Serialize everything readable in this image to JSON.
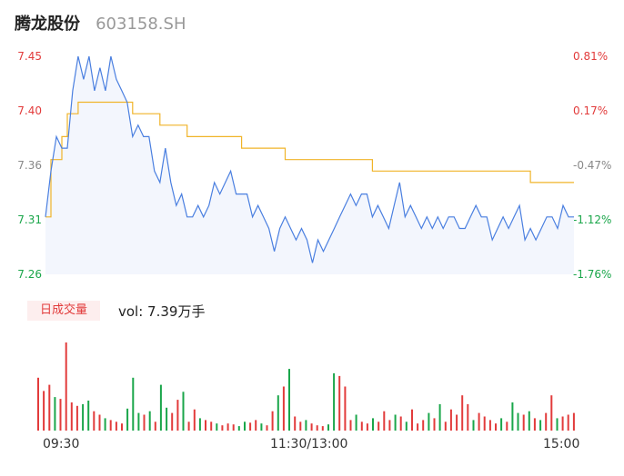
{
  "header": {
    "name": "腾龙股份",
    "code": "603158.SH"
  },
  "price_axis": [
    {
      "label": "7.45",
      "color": "#e23b3b"
    },
    {
      "label": "7.40",
      "color": "#e23b3b"
    },
    {
      "label": "7.36",
      "color": "#888888"
    },
    {
      "label": "7.31",
      "color": "#1aa64a"
    },
    {
      "label": "7.26",
      "color": "#1aa64a"
    }
  ],
  "pct_axis": [
    {
      "label": "0.81%",
      "color": "#e23b3b"
    },
    {
      "label": "0.17%",
      "color": "#e23b3b"
    },
    {
      "label": "-0.47%",
      "color": "#888888"
    },
    {
      "label": "-1.12%",
      "color": "#1aa64a"
    },
    {
      "label": "-1.76%",
      "color": "#1aa64a"
    }
  ],
  "volume": {
    "badge": "日成交量",
    "text": "vol: 7.39万手"
  },
  "time_axis": [
    "09:30",
    "11:30/13:00",
    "15:00"
  ],
  "colors": {
    "price_line": "#4a7fe0",
    "avg_line": "#f0b429",
    "up": "#e23b3b",
    "down": "#1aa64a"
  },
  "chart_data": {
    "type": "line",
    "ylim": [
      7.26,
      7.45
    ],
    "price": [
      7.31,
      7.35,
      7.38,
      7.37,
      7.37,
      7.42,
      7.45,
      7.43,
      7.45,
      7.42,
      7.44,
      7.42,
      7.45,
      7.43,
      7.42,
      7.41,
      7.38,
      7.39,
      7.38,
      7.38,
      7.35,
      7.34,
      7.37,
      7.34,
      7.32,
      7.33,
      7.31,
      7.31,
      7.32,
      7.31,
      7.32,
      7.34,
      7.33,
      7.34,
      7.35,
      7.33,
      7.33,
      7.33,
      7.31,
      7.32,
      7.31,
      7.3,
      7.28,
      7.3,
      7.31,
      7.3,
      7.29,
      7.3,
      7.29,
      7.27,
      7.29,
      7.28,
      7.29,
      7.3,
      7.31,
      7.32,
      7.33,
      7.32,
      7.33,
      7.33,
      7.31,
      7.32,
      7.31,
      7.3,
      7.32,
      7.34,
      7.31,
      7.32,
      7.31,
      7.3,
      7.31,
      7.3,
      7.31,
      7.3,
      7.31,
      7.31,
      7.3,
      7.3,
      7.31,
      7.32,
      7.31,
      7.31,
      7.29,
      7.3,
      7.31,
      7.3,
      7.31,
      7.32,
      7.29,
      7.3,
      7.29,
      7.3,
      7.31,
      7.31,
      7.3,
      7.32,
      7.31,
      7.31
    ],
    "avg": [
      7.31,
      7.36,
      7.36,
      7.38,
      7.4,
      7.4,
      7.41,
      7.41,
      7.41,
      7.41,
      7.41,
      7.41,
      7.41,
      7.41,
      7.41,
      7.41,
      7.4,
      7.4,
      7.4,
      7.4,
      7.4,
      7.39,
      7.39,
      7.39,
      7.39,
      7.39,
      7.38,
      7.38,
      7.38,
      7.38,
      7.38,
      7.38,
      7.38,
      7.38,
      7.38,
      7.38,
      7.37,
      7.37,
      7.37,
      7.37,
      7.37,
      7.37,
      7.37,
      7.37,
      7.36,
      7.36,
      7.36,
      7.36,
      7.36,
      7.36,
      7.36,
      7.36,
      7.36,
      7.36,
      7.36,
      7.36,
      7.36,
      7.36,
      7.36,
      7.36,
      7.35,
      7.35,
      7.35,
      7.35,
      7.35,
      7.35,
      7.35,
      7.35,
      7.35,
      7.35,
      7.35,
      7.35,
      7.35,
      7.35,
      7.35,
      7.35,
      7.35,
      7.35,
      7.35,
      7.35,
      7.35,
      7.35,
      7.35,
      7.35,
      7.35,
      7.35,
      7.35,
      7.35,
      7.35,
      7.34,
      7.34,
      7.34,
      7.34,
      7.34,
      7.34,
      7.34,
      7.34,
      7.34
    ],
    "volume_bars": [
      {
        "v": 60,
        "up": true
      },
      {
        "v": 45,
        "up": true
      },
      {
        "v": 52,
        "up": true
      },
      {
        "v": 38,
        "up": false
      },
      {
        "v": 36,
        "up": true
      },
      {
        "v": 100,
        "up": true
      },
      {
        "v": 32,
        "up": true
      },
      {
        "v": 28,
        "up": true
      },
      {
        "v": 30,
        "up": false
      },
      {
        "v": 34,
        "up": false
      },
      {
        "v": 22,
        "up": true
      },
      {
        "v": 18,
        "up": true
      },
      {
        "v": 14,
        "up": false
      },
      {
        "v": 12,
        "up": true
      },
      {
        "v": 10,
        "up": true
      },
      {
        "v": 8,
        "up": true
      },
      {
        "v": 25,
        "up": false
      },
      {
        "v": 60,
        "up": false
      },
      {
        "v": 20,
        "up": false
      },
      {
        "v": 18,
        "up": true
      },
      {
        "v": 22,
        "up": false
      },
      {
        "v": 10,
        "up": true
      },
      {
        "v": 52,
        "up": false
      },
      {
        "v": 26,
        "up": false
      },
      {
        "v": 20,
        "up": true
      },
      {
        "v": 35,
        "up": true
      },
      {
        "v": 44,
        "up": false
      },
      {
        "v": 10,
        "up": true
      },
      {
        "v": 24,
        "up": true
      },
      {
        "v": 14,
        "up": false
      },
      {
        "v": 12,
        "up": true
      },
      {
        "v": 10,
        "up": true
      },
      {
        "v": 8,
        "up": false
      },
      {
        "v": 6,
        "up": true
      },
      {
        "v": 8,
        "up": true
      },
      {
        "v": 7,
        "up": true
      },
      {
        "v": 5,
        "up": false
      },
      {
        "v": 10,
        "up": false
      },
      {
        "v": 9,
        "up": true
      },
      {
        "v": 12,
        "up": true
      },
      {
        "v": 8,
        "up": false
      },
      {
        "v": 6,
        "up": true
      },
      {
        "v": 22,
        "up": true
      },
      {
        "v": 40,
        "up": false
      },
      {
        "v": 50,
        "up": true
      },
      {
        "v": 70,
        "up": false
      },
      {
        "v": 16,
        "up": true
      },
      {
        "v": 10,
        "up": true
      },
      {
        "v": 12,
        "up": false
      },
      {
        "v": 8,
        "up": true
      },
      {
        "v": 6,
        "up": true
      },
      {
        "v": 5,
        "up": true
      },
      {
        "v": 7,
        "up": false
      },
      {
        "v": 65,
        "up": false
      },
      {
        "v": 62,
        "up": true
      },
      {
        "v": 50,
        "up": true
      },
      {
        "v": 12,
        "up": true
      },
      {
        "v": 18,
        "up": false
      },
      {
        "v": 10,
        "up": true
      },
      {
        "v": 8,
        "up": true
      },
      {
        "v": 14,
        "up": false
      },
      {
        "v": 10,
        "up": true
      },
      {
        "v": 22,
        "up": true
      },
      {
        "v": 12,
        "up": true
      },
      {
        "v": 18,
        "up": false
      },
      {
        "v": 16,
        "up": true
      },
      {
        "v": 10,
        "up": false
      },
      {
        "v": 24,
        "up": true
      },
      {
        "v": 8,
        "up": true
      },
      {
        "v": 12,
        "up": true
      },
      {
        "v": 20,
        "up": false
      },
      {
        "v": 14,
        "up": true
      },
      {
        "v": 30,
        "up": false
      },
      {
        "v": 10,
        "up": true
      },
      {
        "v": 24,
        "up": true
      },
      {
        "v": 18,
        "up": true
      },
      {
        "v": 40,
        "up": true
      },
      {
        "v": 30,
        "up": true
      },
      {
        "v": 12,
        "up": false
      },
      {
        "v": 20,
        "up": true
      },
      {
        "v": 16,
        "up": true
      },
      {
        "v": 12,
        "up": true
      },
      {
        "v": 8,
        "up": true
      },
      {
        "v": 14,
        "up": false
      },
      {
        "v": 10,
        "up": true
      },
      {
        "v": 32,
        "up": false
      },
      {
        "v": 20,
        "up": false
      },
      {
        "v": 18,
        "up": true
      },
      {
        "v": 22,
        "up": false
      },
      {
        "v": 14,
        "up": true
      },
      {
        "v": 12,
        "up": false
      },
      {
        "v": 20,
        "up": true
      },
      {
        "v": 40,
        "up": true
      },
      {
        "v": 14,
        "up": false
      },
      {
        "v": 16,
        "up": true
      },
      {
        "v": 18,
        "up": true
      },
      {
        "v": 20,
        "up": true
      }
    ]
  }
}
